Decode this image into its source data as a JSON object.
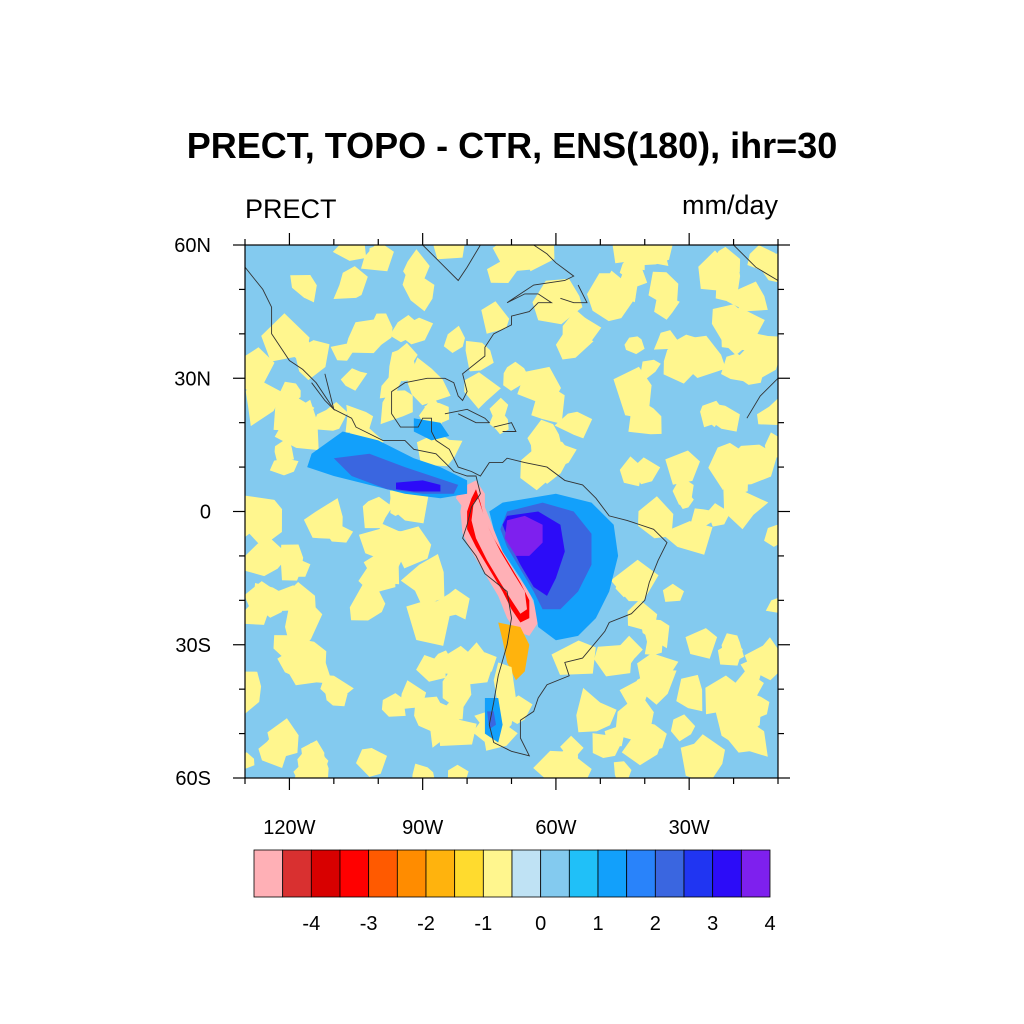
{
  "chart_data": {
    "type": "heatmap",
    "title": "PRECT, TOPO - CTR, ENS(180), ihr=30",
    "left_subtitle": "PRECT",
    "right_subtitle": "mm/day",
    "projection": "cylindrical-equidistant",
    "lon_range": [
      -130,
      -10
    ],
    "lat_range": [
      -60,
      60
    ],
    "x_ticks": [
      {
        "value": -120,
        "label": "120W"
      },
      {
        "value": -90,
        "label": "90W"
      },
      {
        "value": -60,
        "label": "60W"
      },
      {
        "value": -30,
        "label": "30W"
      }
    ],
    "y_ticks": [
      {
        "value": 60,
        "label": "60N"
      },
      {
        "value": 30,
        "label": "30N"
      },
      {
        "value": 0,
        "label": "0"
      },
      {
        "value": -30,
        "label": "30S"
      },
      {
        "value": -60,
        "label": "60S"
      }
    ],
    "colorbar": {
      "levels": [
        -4.5,
        -4,
        -3.5,
        -3,
        -2.5,
        -2,
        -1.5,
        -1,
        -0.5,
        0,
        0.5,
        1,
        1.5,
        2,
        2.5,
        3,
        3.5,
        4
      ],
      "labels": [
        {
          "value": -4,
          "label": "-4"
        },
        {
          "value": -3,
          "label": "-3"
        },
        {
          "value": -2,
          "label": "-2"
        },
        {
          "value": -1,
          "label": "-1"
        },
        {
          "value": 0,
          "label": "0"
        },
        {
          "value": 1,
          "label": "1"
        },
        {
          "value": 2,
          "label": "2"
        },
        {
          "value": 3,
          "label": "3"
        },
        {
          "value": 4,
          "label": "4"
        }
      ],
      "colors": [
        "#ffb0b6",
        "#d93030",
        "#d80000",
        "#ff0000",
        "#ff5a00",
        "#ff8c00",
        "#ffb30d",
        "#ffdb2e",
        "#fff68e",
        "#bfe2f4",
        "#83caef",
        "#20c0f8",
        "#12a0fb",
        "#2983fa",
        "#3a66e0",
        "#2035f2",
        "#2c0cf8",
        "#7e20ee"
      ]
    },
    "background_value": 0.3,
    "features": [
      {
        "name": "andes-decrease",
        "value": -4.6,
        "path": [
          [
            -80,
            6
          ],
          [
            -78,
            7
          ],
          [
            -76,
            4
          ],
          [
            -76,
            1
          ],
          [
            -74,
            -4
          ],
          [
            -72,
            -9
          ],
          [
            -69,
            -14
          ],
          [
            -66,
            -18
          ],
          [
            -64.5,
            -22
          ],
          [
            -64,
            -25
          ],
          [
            -66,
            -28
          ],
          [
            -69,
            -27
          ],
          [
            -71,
            -24
          ],
          [
            -73,
            -19
          ],
          [
            -76,
            -14
          ],
          [
            -79,
            -9
          ],
          [
            -81,
            -5
          ],
          [
            -81.5,
            0
          ],
          [
            -81,
            3
          ]
        ]
      },
      {
        "name": "andes-decrease",
        "value": -3.3,
        "path": [
          [
            -79,
            3
          ],
          [
            -78,
            5
          ],
          [
            -77,
            2
          ],
          [
            -76,
            -2
          ],
          [
            -74,
            -6
          ],
          [
            -71,
            -11
          ],
          [
            -68,
            -16
          ],
          [
            -66,
            -20
          ],
          [
            -66,
            -24
          ],
          [
            -68,
            -25
          ],
          [
            -70,
            -22
          ],
          [
            -72,
            -18
          ],
          [
            -75,
            -13
          ],
          [
            -78,
            -8
          ],
          [
            -80,
            -4
          ],
          [
            -80,
            0
          ]
        ]
      },
      {
        "name": "andes-decrease",
        "value": -4.6,
        "path": [
          [
            -78.5,
            2
          ],
          [
            -77.5,
            3
          ],
          [
            -76.5,
            0
          ],
          [
            -75,
            -4
          ],
          [
            -72.5,
            -9
          ],
          [
            -69.5,
            -14
          ],
          [
            -67,
            -18
          ],
          [
            -66.5,
            -22
          ],
          [
            -68,
            -23
          ],
          [
            -70,
            -20
          ],
          [
            -72.5,
            -16
          ],
          [
            -75.5,
            -11
          ],
          [
            -78,
            -6
          ],
          [
            -79,
            -2
          ]
        ]
      },
      {
        "name": "andes-decrease",
        "value": -4.6,
        "path": [
          [
            -82,
            5
          ],
          [
            -80,
            6
          ],
          [
            -79.5,
            3
          ],
          [
            -81,
            1
          ],
          [
            -82.5,
            3
          ]
        ]
      },
      {
        "name": "southern-andes-decrease",
        "value": -1.7,
        "path": [
          [
            -73,
            -25
          ],
          [
            -68,
            -26
          ],
          [
            -66,
            -30
          ],
          [
            -67,
            -36
          ],
          [
            -69,
            -38
          ],
          [
            -71,
            -34
          ],
          [
            -72,
            -29
          ]
        ]
      },
      {
        "name": "southern-andes-decrease",
        "value": -0.7,
        "path": [
          [
            -73,
            -34
          ],
          [
            -70,
            -35
          ],
          [
            -69,
            -42
          ],
          [
            -70,
            -48
          ],
          [
            -72,
            -50
          ],
          [
            -73,
            -44
          ],
          [
            -74,
            -38
          ]
        ]
      },
      {
        "name": "amazon-increase",
        "value": 1.2,
        "path": [
          [
            -72,
            2
          ],
          [
            -60,
            4
          ],
          [
            -52,
            2
          ],
          [
            -47,
            -3
          ],
          [
            -46,
            -10
          ],
          [
            -48,
            -18
          ],
          [
            -51,
            -24
          ],
          [
            -55,
            -28
          ],
          [
            -60,
            -29
          ],
          [
            -64,
            -26
          ],
          [
            -65,
            -20
          ],
          [
            -68,
            -15
          ],
          [
            -72,
            -9
          ],
          [
            -74,
            -4
          ],
          [
            -75,
            0
          ]
        ]
      },
      {
        "name": "amazon-increase",
        "value": 2.2,
        "path": [
          [
            -71,
            0
          ],
          [
            -63,
            2
          ],
          [
            -56,
            0
          ],
          [
            -52,
            -5
          ],
          [
            -52,
            -12
          ],
          [
            -55,
            -18
          ],
          [
            -59,
            -22
          ],
          [
            -63,
            -22
          ],
          [
            -65,
            -18
          ],
          [
            -68,
            -13
          ],
          [
            -71,
            -8
          ],
          [
            -72.5,
            -4
          ]
        ]
      },
      {
        "name": "amazon-increase",
        "value": 3.2,
        "path": [
          [
            -71,
            -1
          ],
          [
            -64,
            0
          ],
          [
            -59,
            -3
          ],
          [
            -58,
            -9
          ],
          [
            -60,
            -15
          ],
          [
            -62,
            -19
          ],
          [
            -65,
            -17
          ],
          [
            -68,
            -12
          ],
          [
            -70.5,
            -7
          ],
          [
            -72,
            -3
          ]
        ]
      },
      {
        "name": "amazon-increase",
        "value": 4.2,
        "path": [
          [
            -71,
            -2
          ],
          [
            -67,
            -1
          ],
          [
            -63,
            -3
          ],
          [
            -63,
            -7
          ],
          [
            -66,
            -10
          ],
          [
            -69,
            -10
          ],
          [
            -71.5,
            -6
          ]
        ]
      },
      {
        "name": "itcz-increase",
        "value": 1.2,
        "path": [
          [
            -115,
            13
          ],
          [
            -108,
            18
          ],
          [
            -100,
            16
          ],
          [
            -92,
            12
          ],
          [
            -86,
            10
          ],
          [
            -80,
            7
          ],
          [
            -80,
            4
          ],
          [
            -86,
            3
          ],
          [
            -94,
            4
          ],
          [
            -102,
            6
          ],
          [
            -110,
            8
          ],
          [
            -116,
            10
          ]
        ]
      },
      {
        "name": "itcz-increase",
        "value": 2.2,
        "path": [
          [
            -110,
            12
          ],
          [
            -102,
            13
          ],
          [
            -94,
            10
          ],
          [
            -88,
            8
          ],
          [
            -82,
            6
          ],
          [
            -83,
            4
          ],
          [
            -90,
            4
          ],
          [
            -98,
            5
          ],
          [
            -106,
            8
          ]
        ]
      },
      {
        "name": "itcz-increase",
        "value": 3.2,
        "path": [
          [
            -96,
            6.5
          ],
          [
            -90,
            7
          ],
          [
            -86,
            6
          ],
          [
            -86,
            4.5
          ],
          [
            -92,
            4.5
          ],
          [
            -96,
            5
          ]
        ]
      },
      {
        "name": "gulf-increase",
        "value": 1.2,
        "path": [
          [
            -92,
            21
          ],
          [
            -86,
            20
          ],
          [
            -84,
            17
          ],
          [
            -88,
            16
          ],
          [
            -92,
            18
          ]
        ]
      },
      {
        "name": "patagonia-increase",
        "value": 1.2,
        "path": [
          [
            -76,
            -42
          ],
          [
            -73,
            -42
          ],
          [
            -72,
            -48
          ],
          [
            -73,
            -52
          ],
          [
            -76,
            -50
          ]
        ]
      },
      {
        "name": "patagonia-increase",
        "value": 2.2,
        "path": [
          [
            -75.5,
            -45
          ],
          [
            -74,
            -45
          ],
          [
            -73.5,
            -48
          ],
          [
            -75,
            -49
          ]
        ]
      }
    ]
  }
}
